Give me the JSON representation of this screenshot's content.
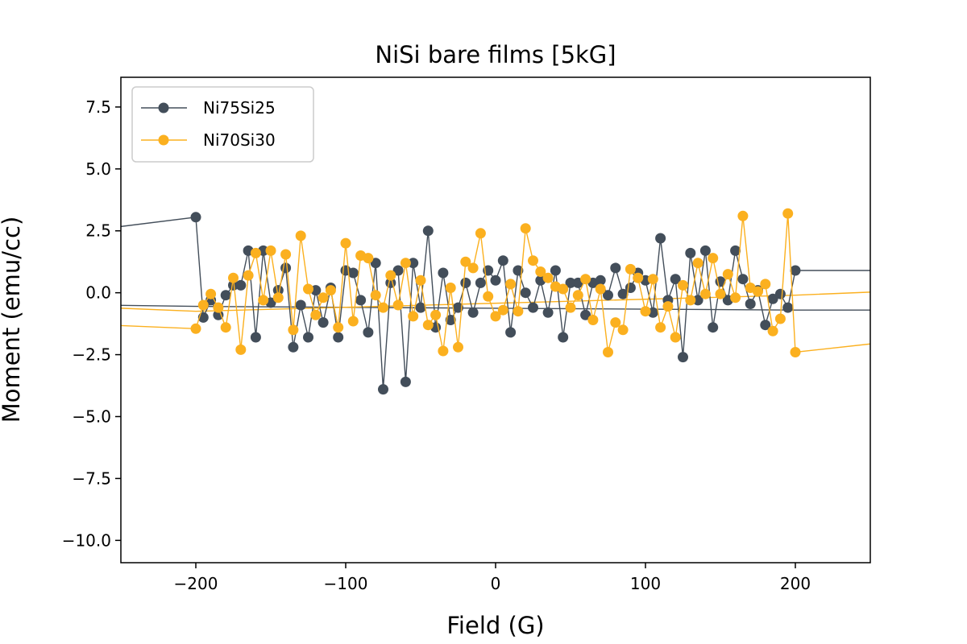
{
  "chart_data": {
    "type": "line",
    "title": "NiSi bare films [5kG]",
    "xlabel": "Field (G)",
    "ylabel": "Moment (emu/cc)",
    "xlim": [
      -250,
      250
    ],
    "ylim": [
      -10.9,
      8.7
    ],
    "xticks": [
      -200,
      -100,
      0,
      100,
      200
    ],
    "xtick_labels": [
      "−200",
      "−100",
      "0",
      "100",
      "200"
    ],
    "yticks": [
      -10.0,
      -7.5,
      -5.0,
      -2.5,
      0.0,
      2.5,
      5.0,
      7.5
    ],
    "ytick_labels": [
      "−10.0",
      "−7.5",
      "−5.0",
      "−2.5",
      "0.0",
      "2.5",
      "5.0",
      "7.5"
    ],
    "grid": false,
    "legend_position": "top-left",
    "series": [
      {
        "name": "Ni75Si25",
        "color": "#434e5a",
        "x": [
          -260,
          -200,
          -195,
          -190,
          -185,
          -180,
          -175,
          -170,
          -165,
          -160,
          -155,
          -150,
          -145,
          -140,
          -135,
          -130,
          -125,
          -120,
          -115,
          -110,
          -105,
          -100,
          -95,
          -90,
          -85,
          -80,
          -75,
          -70,
          -65,
          -60,
          -55,
          -50,
          -45,
          -40,
          -35,
          -30,
          -25,
          -20,
          -15,
          -10,
          -5,
          0,
          5,
          10,
          15,
          20,
          25,
          30,
          35,
          40,
          45,
          50,
          55,
          60,
          65,
          70,
          75,
          80,
          85,
          90,
          95,
          100,
          105,
          110,
          115,
          120,
          125,
          130,
          135,
          140,
          145,
          150,
          155,
          160,
          165,
          170,
          175,
          180,
          185,
          190,
          195,
          200,
          260
        ],
        "y": [
          2.6,
          3.05,
          -1.0,
          -0.3,
          -0.9,
          -0.1,
          0.3,
          0.3,
          1.7,
          -1.8,
          1.7,
          -0.4,
          0.1,
          1.0,
          -2.2,
          -0.5,
          -1.8,
          0.1,
          -1.2,
          0.2,
          -1.8,
          0.9,
          0.8,
          -0.3,
          -1.6,
          1.2,
          -3.9,
          0.4,
          0.9,
          -3.6,
          1.2,
          -0.6,
          2.5,
          -1.4,
          0.8,
          -1.1,
          -0.6,
          0.4,
          -0.8,
          0.4,
          0.9,
          0.5,
          1.3,
          -1.6,
          0.9,
          0.0,
          -0.6,
          0.5,
          -0.8,
          0.9,
          -1.8,
          0.4,
          0.4,
          -0.9,
          0.4,
          0.5,
          -0.1,
          1.0,
          -0.05,
          0.2,
          0.8,
          0.5,
          -0.8,
          2.2,
          -0.3,
          0.55,
          -2.6,
          1.6,
          -0.3,
          1.7,
          -1.4,
          0.45,
          -0.3,
          1.7,
          0.55,
          -0.45,
          0.1,
          -1.3,
          -0.25,
          -0.05,
          -0.6,
          0.9,
          0.9
        ]
      },
      {
        "name": "Ni70Si30",
        "color": "#fbb01f",
        "x": [
          -260,
          -200,
          -195,
          -190,
          -185,
          -180,
          -175,
          -170,
          -165,
          -160,
          -155,
          -150,
          -145,
          -140,
          -135,
          -130,
          -125,
          -120,
          -115,
          -110,
          -105,
          -100,
          -95,
          -90,
          -85,
          -80,
          -75,
          -70,
          -65,
          -60,
          -55,
          -50,
          -45,
          -40,
          -35,
          -30,
          -25,
          -20,
          -15,
          -10,
          -5,
          0,
          5,
          10,
          15,
          20,
          25,
          30,
          35,
          40,
          45,
          50,
          55,
          60,
          65,
          70,
          75,
          80,
          85,
          90,
          95,
          100,
          105,
          110,
          115,
          120,
          125,
          130,
          135,
          140,
          145,
          150,
          155,
          160,
          165,
          170,
          175,
          180,
          185,
          190,
          195,
          200,
          260
        ],
        "y": [
          -1.3,
          -1.45,
          -0.5,
          -0.05,
          -0.6,
          -1.4,
          0.6,
          -2.3,
          0.7,
          1.6,
          -0.3,
          1.7,
          -0.2,
          1.55,
          -1.5,
          2.3,
          0.15,
          -0.9,
          -0.2,
          0.1,
          -1.4,
          2.0,
          -1.15,
          1.5,
          1.4,
          -0.1,
          -0.6,
          0.7,
          -0.5,
          1.2,
          -0.95,
          0.5,
          -1.3,
          -0.9,
          -2.35,
          0.2,
          -2.2,
          1.25,
          1.0,
          2.4,
          -0.15,
          -0.95,
          -0.7,
          0.35,
          -0.75,
          2.6,
          1.3,
          0.85,
          0.6,
          0.25,
          0.15,
          -0.6,
          -0.1,
          0.55,
          -1.1,
          0.15,
          -2.4,
          -1.2,
          -1.5,
          0.95,
          0.6,
          -0.75,
          0.55,
          -1.4,
          -0.55,
          -1.8,
          0.3,
          -0.3,
          1.2,
          -0.05,
          1.4,
          -0.05,
          0.75,
          -0.2,
          3.1,
          0.2,
          0.05,
          0.35,
          -1.55,
          -1.05,
          3.2,
          -2.4,
          -2.0
        ]
      }
    ],
    "extra_lines": [
      {
        "color": "#434e5a",
        "x": [
          -260,
          -200,
          200,
          260
        ],
        "y": [
          -0.5,
          -0.55,
          -0.7,
          -0.7
        ]
      },
      {
        "color": "#fbb01f",
        "x": [
          -260,
          -200,
          200,
          260
        ],
        "y": [
          -0.6,
          -0.75,
          -0.1,
          0.05
        ]
      }
    ]
  }
}
